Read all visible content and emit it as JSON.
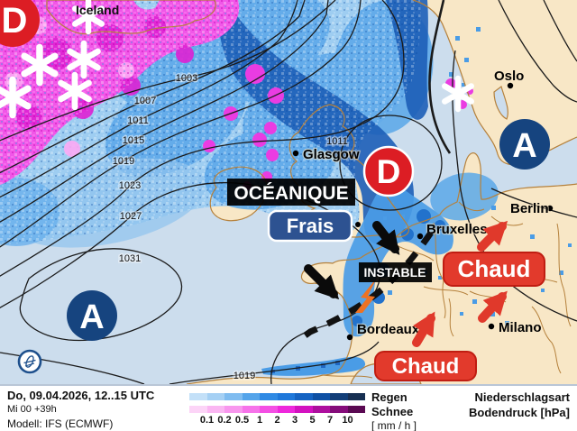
{
  "map": {
    "region_label": "Iceland",
    "cities": [
      {
        "name": "Oslo"
      },
      {
        "name": "Glasgow"
      },
      {
        "name": "Berlin"
      },
      {
        "name": "Bruxelles"
      },
      {
        "name": "Bordeaux"
      },
      {
        "name": "Milano"
      }
    ],
    "pressure_centers": [
      {
        "label": "D",
        "type": "low"
      },
      {
        "label": "D",
        "type": "low"
      },
      {
        "label": "A",
        "type": "high"
      },
      {
        "label": "A",
        "type": "high"
      }
    ],
    "isobar_labels": [
      "1003",
      "1007",
      "1011",
      "1015",
      "1019",
      "1023",
      "1027",
      "1031",
      "1011",
      "1019"
    ],
    "annotations": {
      "airmass_type": "OCÉANIQUE",
      "cool": "Frais",
      "unstable": "INSTABLE",
      "warm_upper": "Chaud",
      "warm_lower": "Chaud"
    },
    "colors": {
      "low_red": "#dc1d24",
      "high_blue": "#16447f",
      "land": "#f8e7c6",
      "sea": "#ccdded",
      "warm_box": "#e23a2c",
      "cool_box": "#2d5291"
    }
  },
  "legend": {
    "valid_line": "Do, 09.04.2026, 12..15 UTC",
    "run_line": "Mi 00 +39h",
    "model_line": "Modell: IFS (ECMWF)",
    "rain_label": "Regen",
    "snow_label": "Schnee",
    "unit_label": "[ mm / h ]",
    "title_line1": "Niederschlagsart",
    "title_line2": "Bodendruck [hPa]",
    "scale_ticks": [
      "0.1",
      "0.2",
      "0.5",
      "1",
      "2",
      "3",
      "5",
      "7",
      "10"
    ],
    "rain_colors": [
      "#c3e0f8",
      "#a5d0f4",
      "#7fbcf0",
      "#54a4ea",
      "#2f8ae4",
      "#1f78da",
      "#1563c2",
      "#0e50a4",
      "#123e78",
      "#172f52"
    ],
    "snow_colors": [
      "#fcd4f7",
      "#fab6f2",
      "#f897ee",
      "#f673ea",
      "#f44fe4",
      "#ee28dc",
      "#d312c0",
      "#ad0f9e",
      "#850c7a",
      "#5a0952"
    ]
  }
}
